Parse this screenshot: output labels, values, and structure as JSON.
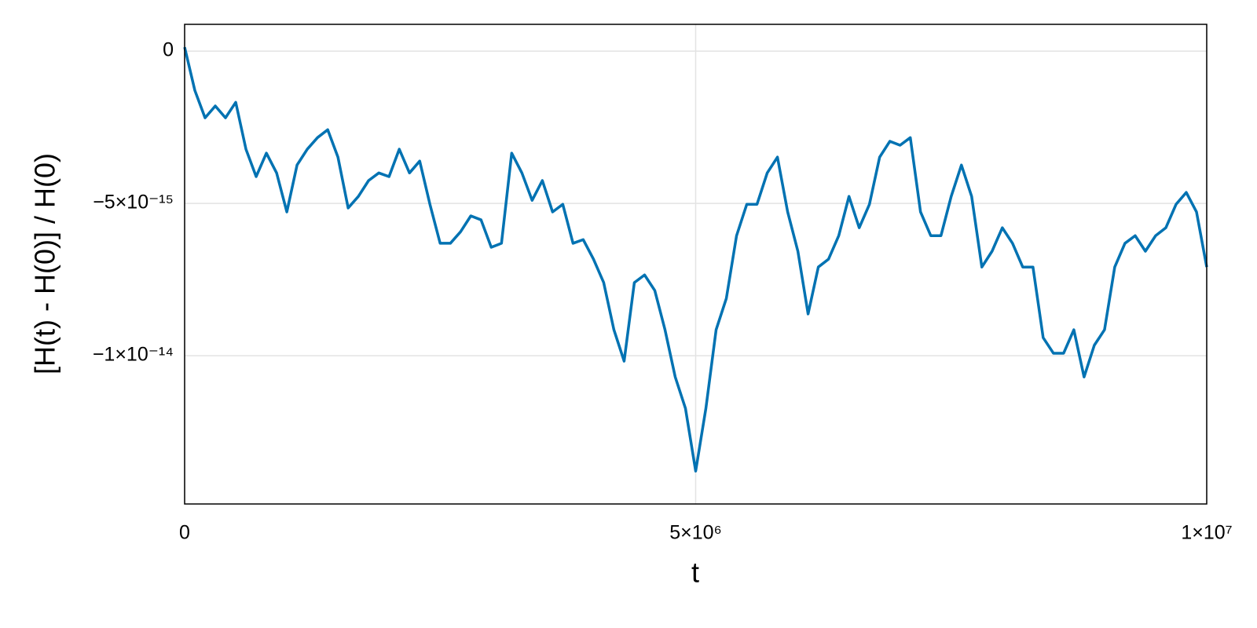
{
  "chart_data": {
    "type": "line",
    "x_label": "t",
    "y_label": "[H(t) - H(0)] / H(0)",
    "x": [
      0,
      100000,
      200000,
      300000,
      400000,
      500000,
      600000,
      700000,
      800000,
      900000,
      1000000,
      1100000,
      1200000,
      1300000,
      1400000,
      1500000,
      1600000,
      1700000,
      1800000,
      1900000,
      2000000,
      2100000,
      2200000,
      2300000,
      2400000,
      2500000,
      2600000,
      2700000,
      2800000,
      2900000,
      3000000,
      3100000,
      3200000,
      3300000,
      3400000,
      3500000,
      3600000,
      3700000,
      3800000,
      3900000,
      4000000,
      4100000,
      4200000,
      4300000,
      4400000,
      4500000,
      4600000,
      4700000,
      4800000,
      4900000,
      5000000,
      5100000,
      5200000,
      5300000,
      5400000,
      5500000,
      5600000,
      5700000,
      5800000,
      5900000,
      6000000,
      6100000,
      6200000,
      6300000,
      6400000,
      6500000,
      6600000,
      6700000,
      6800000,
      6900000,
      7000000,
      7100000,
      7200000,
      7300000,
      7400000,
      7500000,
      7600000,
      7700000,
      7800000,
      7900000,
      8000000,
      8100000,
      8200000,
      8300000,
      8400000,
      8500000,
      8600000,
      8700000,
      8800000,
      8900000,
      9000000,
      9100000,
      9200000,
      9300000,
      9400000,
      9500000,
      9600000,
      9700000,
      9800000,
      9900000,
      10000000
    ],
    "values": [
      1.3e-16,
      -1.29e-15,
      -2.19e-15,
      -1.8e-15,
      -2.19e-15,
      -1.68e-15,
      -3.22e-15,
      -4.12e-15,
      -3.35e-15,
      -4e-15,
      -5.28e-15,
      -3.74e-15,
      -3.22e-15,
      -2.84e-15,
      -2.58e-15,
      -3.48e-15,
      -5.15e-15,
      -4.77e-15,
      -4.25e-15,
      -4e-15,
      -4.12e-15,
      -3.22e-15,
      -4e-15,
      -3.61e-15,
      -5.03e-15,
      -6.31e-15,
      -6.31e-15,
      -5.93e-15,
      -5.41e-15,
      -5.54e-15,
      -6.44e-15,
      -6.31e-15,
      -3.35e-15,
      -4e-15,
      -4.9e-15,
      -4.25e-15,
      -5.28e-15,
      -5.03e-15,
      -6.31e-15,
      -6.19e-15,
      -6.83e-15,
      -7.6e-15,
      -9.15e-15,
      -1.018e-14,
      -7.6e-15,
      -7.35e-15,
      -7.86e-15,
      -9.15e-15,
      -1.07e-14,
      -1.173e-14,
      -1.379e-14,
      -1.173e-14,
      -9.15e-15,
      -8.12e-15,
      -6.06e-15,
      -5.03e-15,
      -5.03e-15,
      -4e-15,
      -3.48e-15,
      -5.28e-15,
      -6.57e-15,
      -8.63e-15,
      -7.09e-15,
      -6.83e-15,
      -6.06e-15,
      -4.77e-15,
      -5.8e-15,
      -5.03e-15,
      -3.48e-15,
      -2.96e-15,
      -3.09e-15,
      -2.84e-15,
      -5.28e-15,
      -6.06e-15,
      -6.06e-15,
      -4.77e-15,
      -3.74e-15,
      -4.77e-15,
      -7.09e-15,
      -6.57e-15,
      -5.8e-15,
      -6.31e-15,
      -7.09e-15,
      -7.09e-15,
      -9.41e-15,
      -9.92e-15,
      -9.92e-15,
      -9.15e-15,
      -1.07e-14,
      -9.66e-15,
      -9.15e-15,
      -7.09e-15,
      -6.31e-15,
      -6.06e-15,
      -6.57e-15,
      -6.06e-15,
      -5.8e-15,
      -5.03e-15,
      -4.64e-15,
      -5.28e-15,
      -7.09e-15
    ],
    "color": "#0072b2",
    "xlim": [
      0,
      10000000
    ],
    "ylim": [
      -1.487e-14,
      8.8e-16
    ],
    "xticks": [
      0,
      {
        "value": 5000000,
        "label": "5×10⁶"
      },
      {
        "value": 10000000,
        "label": "1×10⁷"
      }
    ],
    "yticks": [
      0,
      {
        "value": -5e-15,
        "label": "−5×10⁻¹⁵"
      },
      {
        "value": -1e-14,
        "label": "−1×10⁻¹⁴"
      }
    ],
    "grid": true
  }
}
